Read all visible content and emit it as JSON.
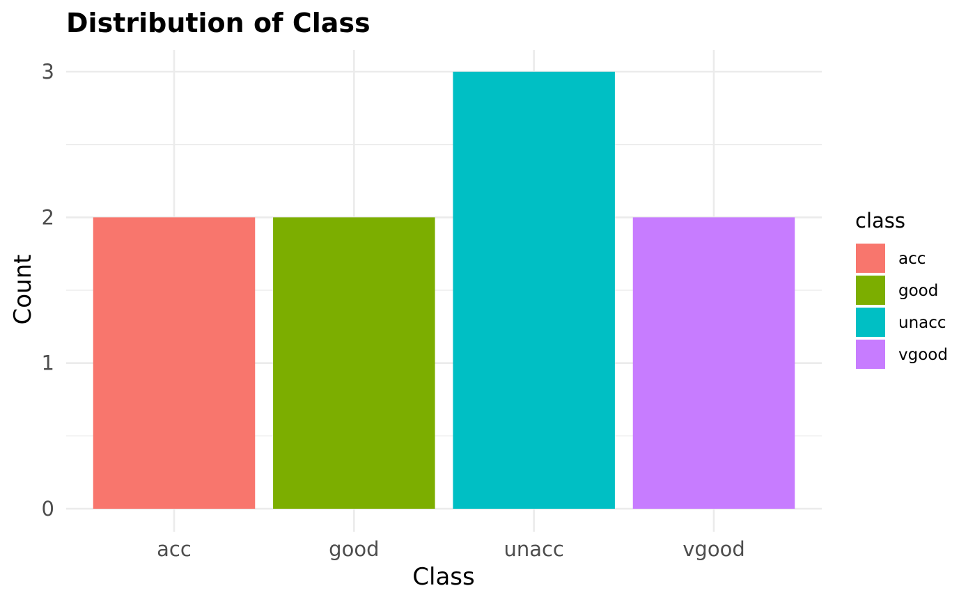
{
  "chart_data": {
    "type": "bar",
    "title": "Distribution of Class",
    "xlabel": "Class",
    "ylabel": "Count",
    "categories": [
      "acc",
      "good",
      "unacc",
      "vgood"
    ],
    "values": [
      2,
      2,
      3,
      2
    ],
    "colors": [
      "#F8766D",
      "#7CAE00",
      "#00BFC4",
      "#C77CFF"
    ],
    "ylim": [
      0,
      3
    ],
    "yticks": [
      0,
      1,
      2,
      3
    ],
    "grid": true,
    "legend": {
      "title": "class",
      "position": "right",
      "entries": [
        "acc",
        "good",
        "unacc",
        "vgood"
      ]
    }
  }
}
